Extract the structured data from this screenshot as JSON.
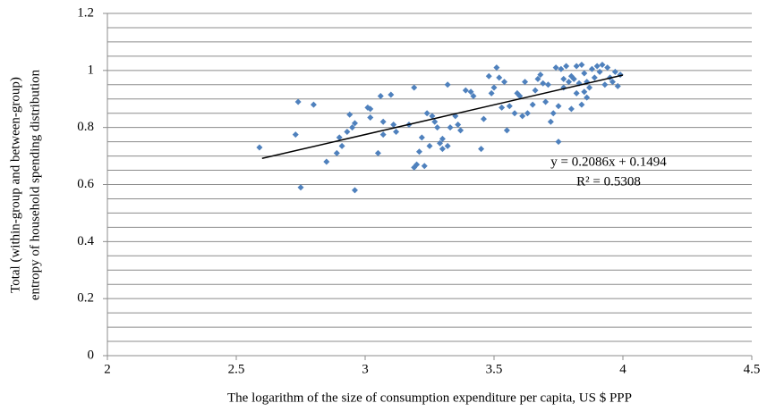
{
  "chart_data": {
    "type": "scatter",
    "x_label": "The logarithm of the size of consumption expenditure per capita, US $ PPP",
    "y_label": [
      "Total (within-group and between-group)",
      "entropy of household  spending distribution"
    ],
    "color": "#4f81bd",
    "xlim": [
      2,
      4.5
    ],
    "xticks": [
      2,
      2.5,
      3,
      3.5,
      4,
      4.5
    ],
    "ylim": [
      0,
      1.2
    ],
    "yticks": [
      0,
      0.2,
      0.4,
      0.6,
      0.8,
      1,
      1.2
    ],
    "minor_yticks": [
      0.05,
      0.1,
      0.15,
      0.25,
      0.3,
      0.35,
      0.45,
      0.5,
      0.55,
      0.65,
      0.7,
      0.75,
      0.85,
      0.9,
      0.95,
      1.05,
      1.1,
      1.15
    ],
    "grid": true,
    "trendline": {
      "slope": 0.2086,
      "intercept": 0.1494,
      "x_range": [
        2.6,
        4.0
      ],
      "color": "#000000",
      "equation_label": "y = 0.2086x + 0.1494",
      "r2_label": "R² = 0.5308"
    },
    "x": [
      2.59,
      2.73,
      2.74,
      2.75,
      2.8,
      2.85,
      2.89,
      2.9,
      2.91,
      2.93,
      2.94,
      2.95,
      2.96,
      2.96,
      3.01,
      3.02,
      3.02,
      3.05,
      3.06,
      3.07,
      3.07,
      3.1,
      3.11,
      3.12,
      3.17,
      3.19,
      3.19,
      3.2,
      3.21,
      3.22,
      3.23,
      3.24,
      3.25,
      3.26,
      3.27,
      3.28,
      3.29,
      3.3,
      3.3,
      3.32,
      3.32,
      3.33,
      3.35,
      3.36,
      3.37,
      3.39,
      3.41,
      3.42,
      3.45,
      3.46,
      3.48,
      3.49,
      3.5,
      3.51,
      3.52,
      3.53,
      3.54,
      3.55,
      3.56,
      3.58,
      3.59,
      3.6,
      3.61,
      3.62,
      3.63,
      3.65,
      3.66,
      3.67,
      3.68,
      3.69,
      3.7,
      3.71,
      3.72,
      3.73,
      3.74,
      3.75,
      3.76,
      3.77,
      3.77,
      3.78,
      3.79,
      3.8,
      3.8,
      3.81,
      3.82,
      3.82,
      3.83,
      3.84,
      3.84,
      3.85,
      3.86,
      3.86,
      3.87,
      3.88,
      3.89,
      3.9,
      3.91,
      3.92,
      3.93,
      3.94,
      3.95,
      3.96,
      3.97,
      3.98,
      3.99,
      3.75,
      3.85
    ],
    "values": [
      0.73,
      0.775,
      0.89,
      0.59,
      0.88,
      0.68,
      0.71,
      0.765,
      0.735,
      0.785,
      0.845,
      0.8,
      0.815,
      0.58,
      0.87,
      0.865,
      0.835,
      0.71,
      0.91,
      0.775,
      0.82,
      0.915,
      0.81,
      0.785,
      0.81,
      0.94,
      0.66,
      0.67,
      0.715,
      0.765,
      0.665,
      0.85,
      0.735,
      0.84,
      0.82,
      0.8,
      0.745,
      0.725,
      0.76,
      0.95,
      0.735,
      0.8,
      0.84,
      0.81,
      0.79,
      0.93,
      0.925,
      0.91,
      0.725,
      0.83,
      0.98,
      0.92,
      0.94,
      1.01,
      0.975,
      0.87,
      0.96,
      0.79,
      0.875,
      0.85,
      0.92,
      0.91,
      0.84,
      0.96,
      0.85,
      0.88,
      0.93,
      0.97,
      0.985,
      0.955,
      0.89,
      0.95,
      0.82,
      0.85,
      1.01,
      0.75,
      1.005,
      0.97,
      0.94,
      1.015,
      0.96,
      0.98,
      0.865,
      0.97,
      1.015,
      0.92,
      0.955,
      1.02,
      0.88,
      0.99,
      0.905,
      0.96,
      0.94,
      1.005,
      0.975,
      1.015,
      0.995,
      1.02,
      0.95,
      1.01,
      0.975,
      0.96,
      0.995,
      0.945,
      0.985,
      0.875,
      0.925
    ]
  }
}
